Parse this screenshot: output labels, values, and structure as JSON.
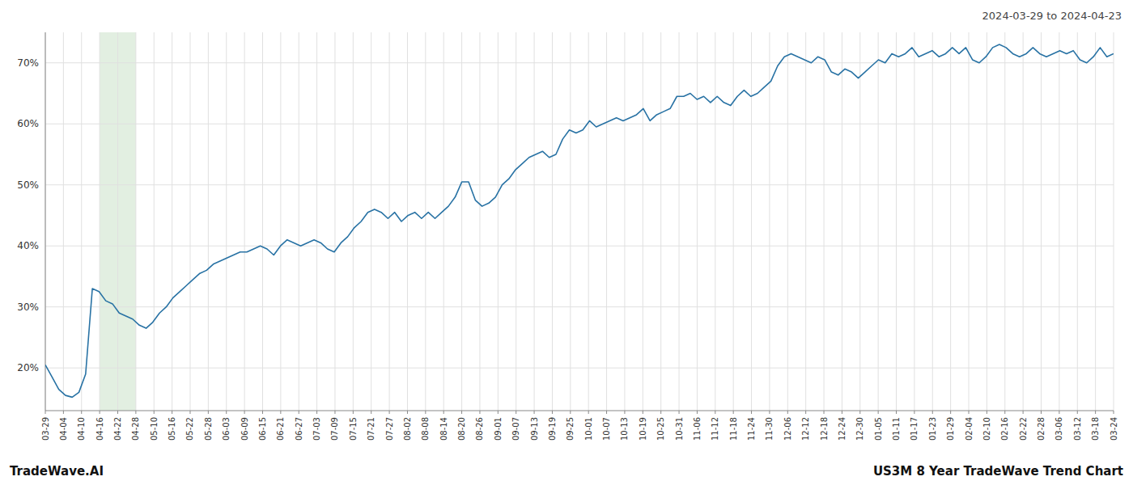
{
  "chart_data": {
    "type": "line",
    "title": "2024-03-29 to 2024-04-23",
    "annotations": [
      "TradeWave.AI",
      "US3M 8 Year TradeWave Trend Chart"
    ],
    "color": "#2872a4",
    "grid": true,
    "span": {
      "from": 8.0847,
      "to": 13.4746,
      "color": "#d5e8d4"
    },
    "xlim": [
      0,
      159
    ],
    "xticks": [
      {
        "value": 0,
        "label": "03-29"
      },
      {
        "value": 2.6949,
        "label": "04-04"
      },
      {
        "value": 5.3898,
        "label": "04-10"
      },
      {
        "value": 8.0847,
        "label": "04-16"
      },
      {
        "value": 10.7797,
        "label": "04-22"
      },
      {
        "value": 13.4746,
        "label": "04-28"
      },
      {
        "value": 16.1695,
        "label": "05-10"
      },
      {
        "value": 18.8644,
        "label": "05-16"
      },
      {
        "value": 21.5593,
        "label": "05-22"
      },
      {
        "value": 24.2542,
        "label": "05-28"
      },
      {
        "value": 26.9492,
        "label": "06-03"
      },
      {
        "value": 29.6441,
        "label": "06-09"
      },
      {
        "value": 32.339,
        "label": "06-15"
      },
      {
        "value": 35.0339,
        "label": "06-21"
      },
      {
        "value": 37.7288,
        "label": "06-27"
      },
      {
        "value": 40.4237,
        "label": "07-03"
      },
      {
        "value": 43.1186,
        "label": "07-09"
      },
      {
        "value": 45.8136,
        "label": "07-15"
      },
      {
        "value": 48.5085,
        "label": "07-21"
      },
      {
        "value": 51.2034,
        "label": "07-27"
      },
      {
        "value": 53.8983,
        "label": "08-02"
      },
      {
        "value": 56.5932,
        "label": "08-08"
      },
      {
        "value": 59.2881,
        "label": "08-14"
      },
      {
        "value": 61.9831,
        "label": "08-20"
      },
      {
        "value": 64.678,
        "label": "08-26"
      },
      {
        "value": 67.3729,
        "label": "09-01"
      },
      {
        "value": 70.0678,
        "label": "09-07"
      },
      {
        "value": 72.7627,
        "label": "09-13"
      },
      {
        "value": 75.4576,
        "label": "09-19"
      },
      {
        "value": 78.1525,
        "label": "09-25"
      },
      {
        "value": 80.8475,
        "label": "10-01"
      },
      {
        "value": 83.5424,
        "label": "10-07"
      },
      {
        "value": 86.2373,
        "label": "10-13"
      },
      {
        "value": 88.9322,
        "label": "10-19"
      },
      {
        "value": 91.6271,
        "label": "10-25"
      },
      {
        "value": 94.322,
        "label": "10-31"
      },
      {
        "value": 97.0169,
        "label": "11-06"
      },
      {
        "value": 99.7119,
        "label": "11-12"
      },
      {
        "value": 102.4068,
        "label": "11-18"
      },
      {
        "value": 105.1017,
        "label": "11-24"
      },
      {
        "value": 107.7966,
        "label": "11-30"
      },
      {
        "value": 110.4915,
        "label": "12-06"
      },
      {
        "value": 113.1864,
        "label": "12-12"
      },
      {
        "value": 115.8814,
        "label": "12-18"
      },
      {
        "value": 118.5763,
        "label": "12-24"
      },
      {
        "value": 121.2712,
        "label": "12-30"
      },
      {
        "value": 123.9661,
        "label": "01-05"
      },
      {
        "value": 126.661,
        "label": "01-11"
      },
      {
        "value": 129.3559,
        "label": "01-17"
      },
      {
        "value": 132.0508,
        "label": "01-23"
      },
      {
        "value": 134.7458,
        "label": "01-29"
      },
      {
        "value": 137.4407,
        "label": "02-04"
      },
      {
        "value": 140.1356,
        "label": "02-10"
      },
      {
        "value": 142.8305,
        "label": "02-16"
      },
      {
        "value": 145.5254,
        "label": "02-22"
      },
      {
        "value": 148.2203,
        "label": "02-28"
      },
      {
        "value": 150.9153,
        "label": "03-06"
      },
      {
        "value": 153.6102,
        "label": "03-12"
      },
      {
        "value": 156.3051,
        "label": "03-18"
      },
      {
        "value": 159,
        "label": "03-24"
      }
    ],
    "ylim": [
      13,
      75
    ],
    "yticks": [
      {
        "value": 20,
        "label": "20%"
      },
      {
        "value": 30,
        "label": "30%"
      },
      {
        "value": 40,
        "label": "40%"
      },
      {
        "value": 50,
        "label": "50%"
      },
      {
        "value": 60,
        "label": "60%"
      },
      {
        "value": 70,
        "label": "70%"
      }
    ],
    "values": [
      20.5,
      18.5,
      16.5,
      15.5,
      15.2,
      16.0,
      19.0,
      33.0,
      32.5,
      31.0,
      30.5,
      29.0,
      28.5,
      28.0,
      27.0,
      26.5,
      27.5,
      29.0,
      30.0,
      31.5,
      32.5,
      33.5,
      34.5,
      35.5,
      36.0,
      37.0,
      37.5,
      38.0,
      38.5,
      39.0,
      39.0,
      39.5,
      40.0,
      39.5,
      38.5,
      40.0,
      41.0,
      40.5,
      40.0,
      40.5,
      41.0,
      40.5,
      39.5,
      39.0,
      40.5,
      41.5,
      43.0,
      44.0,
      45.5,
      46.0,
      45.5,
      44.5,
      45.5,
      44.0,
      45.0,
      45.5,
      44.5,
      45.5,
      44.5,
      45.5,
      46.5,
      48.0,
      50.5,
      50.5,
      47.5,
      46.5,
      47.0,
      48.0,
      50.0,
      51.0,
      52.5,
      53.5,
      54.5,
      55.0,
      55.5,
      54.5,
      55.0,
      57.5,
      59.0,
      58.5,
      59.0,
      60.5,
      59.5,
      60.0,
      60.5,
      61.0,
      60.5,
      61.0,
      61.5,
      62.5,
      60.5,
      61.5,
      62.0,
      62.5,
      64.5,
      64.5,
      65.0,
      64.0,
      64.5,
      63.5,
      64.5,
      63.5,
      63.0,
      64.5,
      65.5,
      64.5,
      65.0,
      66.0,
      67.0,
      69.5,
      71.0,
      71.5,
      71.0,
      70.5,
      70.0,
      71.0,
      70.5,
      68.5,
      68.0,
      69.0,
      68.5,
      67.5,
      68.5,
      69.5,
      70.5,
      70.0,
      71.5,
      71.0,
      71.5,
      72.5,
      71.0,
      71.5,
      72.0,
      71.0,
      71.5,
      72.5,
      71.5,
      72.5,
      70.5,
      70.0,
      71.0,
      72.5,
      73.0,
      72.5,
      71.5,
      71.0,
      71.5,
      72.5,
      71.5,
      71.0,
      71.5,
      72.0,
      71.5,
      72.0,
      70.5,
      70.0,
      71.0,
      72.5,
      71.0,
      71.5
    ]
  }
}
